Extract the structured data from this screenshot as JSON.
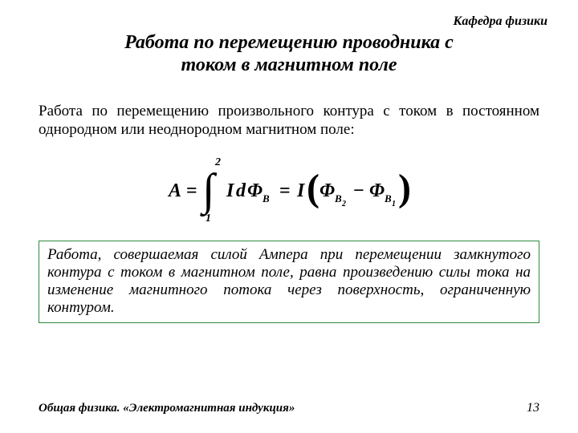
{
  "dept": "Кафедра физики",
  "title_line1": "Работа по перемещению проводника с",
  "title_line2": "током в магнитном поле",
  "intro": "Работа по перемещению произвольного контура с током в постоянном однородном или неоднородном магнитном поле:",
  "box_text": "Работа, совершаемая силой Ампера при перемещении замкнутого контура с током в магнитном поле, равна произведению силы тока на изменение магнитного потока через поверхность, ограниченную контуром.",
  "footer_left": "Общая физика. «Электромагнитная индукция»",
  "page_number": "13",
  "formula": {
    "lhs_symbol": "A",
    "integral_lower": "1",
    "integral_upper": "2",
    "integrand_I": "I",
    "differential": "d",
    "flux_symbol": "Φ",
    "flux_sub": "B",
    "rhs_I": "I",
    "flux_sub2": "2",
    "flux_sub1": "1",
    "color": "#000000",
    "font_size_main": 24,
    "font_size_limits": 14,
    "font_size_sub": 13,
    "font_size_subsub": 10
  },
  "colors": {
    "text": "#000000",
    "box_border": "#2e8b3d",
    "background": "#ffffff"
  }
}
